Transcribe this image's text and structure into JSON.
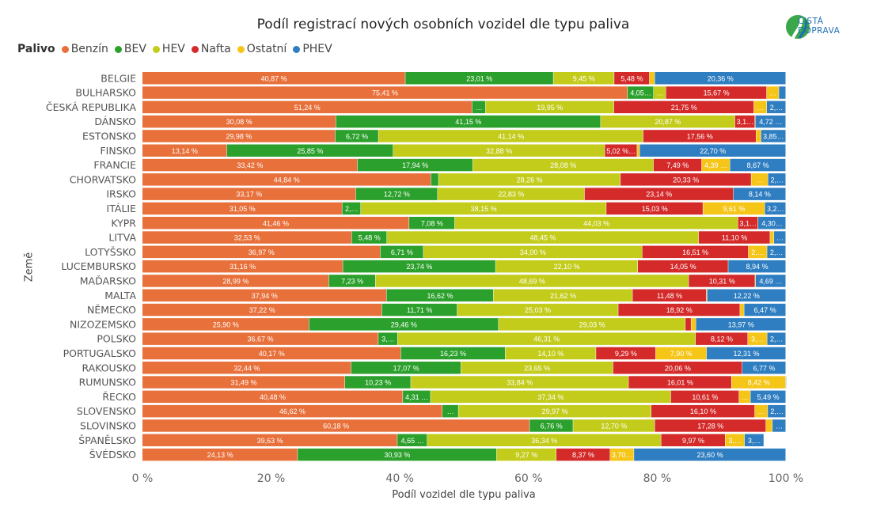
{
  "title": "Podíl registrací nových osobních vozidel dle typu paliva",
  "logo": {
    "line1": "ČISTÁ",
    "line2": "DOPRAVA"
  },
  "chart_data": {
    "type": "bar",
    "orientation": "horizontal",
    "stacked": "100%",
    "title": "Podíl registrací nových osobních vozidel dle typu paliva",
    "legend_title": "Palivo",
    "legend_position": "top-left",
    "xlabel": "Podíl vozidel dle typu paliva",
    "ylabel": "Země",
    "xlim": [
      0,
      100
    ],
    "x_ticks": [
      "0 %",
      "20 %",
      "40 %",
      "60 %",
      "80 %",
      "100 %"
    ],
    "categories": [
      "BELGIE",
      "BULHARSKO",
      "ČESKÁ REPUBLIKA",
      "DÁNSKO",
      "ESTONSKO",
      "FINSKO",
      "FRANCIE",
      "CHORVATSKO",
      "IRSKO",
      "ITÁLIE",
      "KYPR",
      "LITVA",
      "LOTYŠSKO",
      "LUCEMBURSKO",
      "MAĎARSKO",
      "MALTA",
      "NĚMECKO",
      "NIZOZEMSKO",
      "POLSKO",
      "PORTUGALSKO",
      "RAKOUSKO",
      "RUMUNSKO",
      "ŘECKO",
      "SLOVENSKO",
      "SLOVINSKO",
      "ŠPANĚLSKO",
      "ŠVÉDSKO"
    ],
    "series": [
      {
        "name": "Benzín",
        "color": "#e8703a",
        "values": [
          40.87,
          75.41,
          51.24,
          30.08,
          29.98,
          13.14,
          33.42,
          44.84,
          33.17,
          31.05,
          41.46,
          32.53,
          36.97,
          31.16,
          28.99,
          37.94,
          37.22,
          25.9,
          36.67,
          40.17,
          32.44,
          31.49,
          40.48,
          46.62,
          60.18,
          39.63,
          24.13
        ]
      },
      {
        "name": "BEV",
        "color": "#2ca02c",
        "values": [
          23.01,
          4.05,
          2.1,
          41.15,
          6.72,
          25.85,
          17.94,
          1.2,
          12.72,
          2.9,
          7.08,
          5.48,
          6.71,
          23.74,
          7.23,
          16.62,
          11.71,
          29.46,
          3.0,
          16.23,
          17.07,
          10.23,
          4.31,
          2.5,
          6.76,
          4.65,
          30.93
        ]
      },
      {
        "name": "HEV",
        "color": "#c3cc1a",
        "values": [
          9.45,
          1.9,
          19.95,
          20.87,
          41.14,
          32.88,
          28.08,
          28.26,
          22.83,
          38.15,
          44.03,
          48.45,
          34.0,
          22.1,
          48.69,
          21.62,
          25.03,
          29.03,
          46.31,
          14.1,
          23.65,
          33.84,
          37.34,
          29.97,
          12.7,
          36.34,
          9.27
        ]
      },
      {
        "name": "Nafta",
        "color": "#d42a2a",
        "values": [
          5.48,
          15.67,
          21.75,
          3.1,
          17.56,
          5.02,
          7.49,
          20.33,
          23.14,
          15.03,
          3.1,
          11.1,
          16.51,
          14.05,
          10.31,
          11.48,
          18.92,
          0.9,
          8.12,
          9.29,
          20.06,
          16.01,
          10.61,
          16.1,
          17.28,
          9.97,
          8.37
        ]
      },
      {
        "name": "Ostatní",
        "color": "#f5c518",
        "values": [
          0.83,
          1.9,
          2.0,
          0.08,
          0.75,
          0.41,
          4.39,
          2.6,
          0.0,
          9.61,
          0.03,
          0.6,
          2.9,
          0.01,
          0.09,
          0.12,
          0.65,
          0.74,
          3.0,
          7.9,
          0.01,
          8.42,
          1.77,
          2.0,
          1.0,
          3.0,
          3.7
        ]
      },
      {
        "name": "PHEV",
        "color": "#2f7ec1",
        "values": [
          20.36,
          1.07,
          2.96,
          4.72,
          3.85,
          22.7,
          8.67,
          2.77,
          8.14,
          3.26,
          4.3,
          1.84,
          2.91,
          8.94,
          4.69,
          12.22,
          6.47,
          13.97,
          2.9,
          12.31,
          6.77,
          0.01,
          5.49,
          2.81,
          2.08,
          3.0,
          23.6
        ]
      }
    ]
  }
}
